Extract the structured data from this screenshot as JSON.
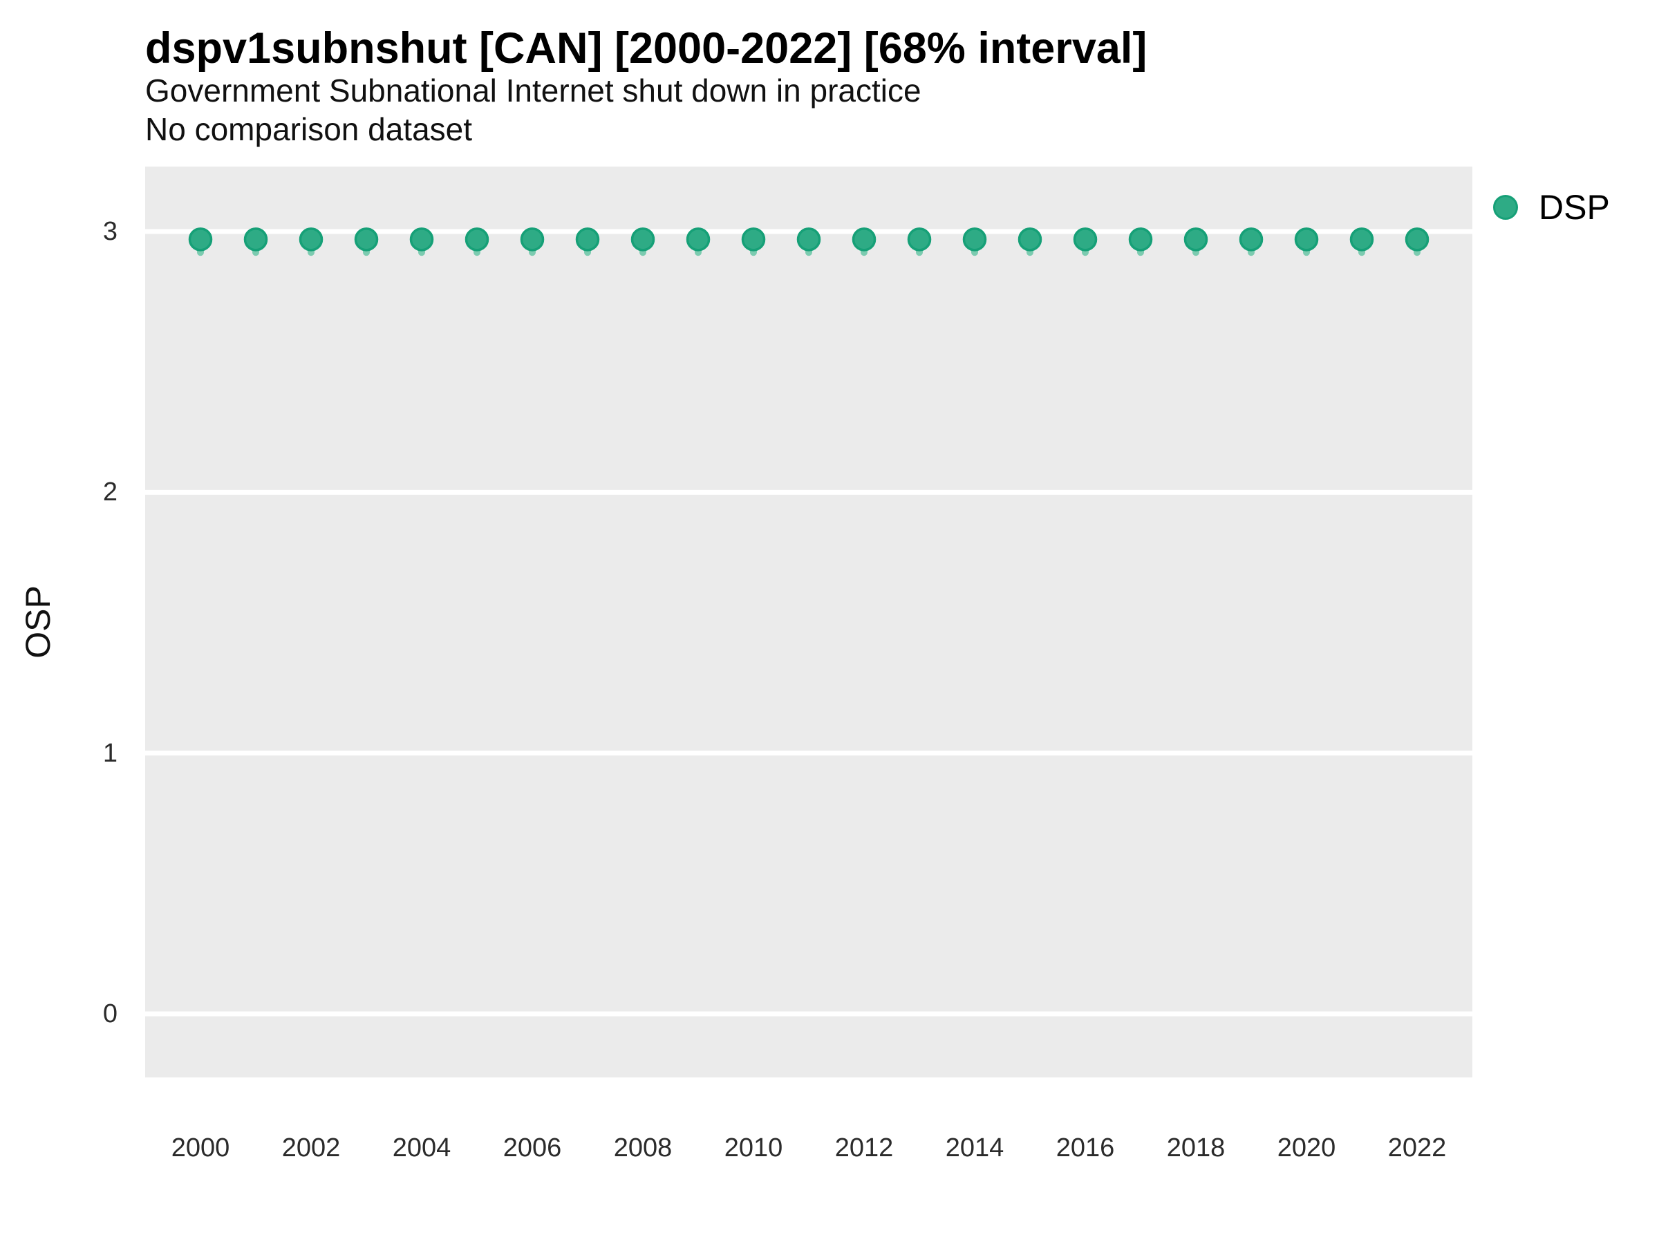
{
  "header": {
    "title": "dspv1subnshut [CAN] [2000-2022] [68% interval]",
    "subtitle": "Government Subnational Internet shut down in practice",
    "comparison_note": "No comparison dataset"
  },
  "legend": {
    "items": [
      {
        "label": "DSP",
        "color": "#2eab85",
        "border_color": "#16a077"
      }
    ]
  },
  "chart_data": {
    "type": "scatter",
    "title": "dspv1subnshut [CAN] [2000-2022] [68% interval]",
    "subtitle": "Government Subnational Internet shut down in practice",
    "note": "No comparison dataset",
    "xlabel": "",
    "ylabel": "OSP",
    "x": [
      2000,
      2001,
      2002,
      2003,
      2004,
      2005,
      2006,
      2007,
      2008,
      2009,
      2010,
      2011,
      2012,
      2013,
      2014,
      2015,
      2016,
      2017,
      2018,
      2019,
      2020,
      2021,
      2022
    ],
    "series": [
      {
        "name": "DSP",
        "values": [
          2.97,
          2.97,
          2.97,
          2.97,
          2.97,
          2.97,
          2.97,
          2.97,
          2.97,
          2.97,
          2.97,
          2.97,
          2.97,
          2.97,
          2.97,
          2.97,
          2.97,
          2.97,
          2.97,
          2.97,
          2.97,
          2.97,
          2.97
        ],
        "interval_low": [
          2.92,
          2.92,
          2.92,
          2.92,
          2.92,
          2.92,
          2.92,
          2.92,
          2.92,
          2.92,
          2.92,
          2.92,
          2.92,
          2.92,
          2.92,
          2.92,
          2.92,
          2.92,
          2.92,
          2.92,
          2.92,
          2.92,
          2.92
        ],
        "interval_high": [
          2.99,
          2.99,
          2.99,
          2.99,
          2.99,
          2.99,
          2.99,
          2.99,
          2.99,
          2.99,
          2.99,
          2.99,
          2.99,
          2.99,
          2.99,
          2.99,
          2.99,
          2.99,
          2.99,
          2.99,
          2.99,
          2.99,
          2.99
        ],
        "interval_label": "68% interval"
      }
    ],
    "xticks": [
      2000,
      2002,
      2004,
      2006,
      2008,
      2010,
      2012,
      2014,
      2016,
      2018,
      2020,
      2022
    ],
    "yticks": [
      0,
      1,
      2,
      3
    ],
    "ylim": [
      -0.25,
      3.25
    ],
    "grid": "major-horizontal-only",
    "legend_position": "right",
    "colors": {
      "point_fill": "#2eab85",
      "point_border": "#16a077",
      "interval_line": "#7ccbb0",
      "panel_background": "#ebebeb",
      "gridline": "#ffffff",
      "text": "#111111"
    }
  }
}
